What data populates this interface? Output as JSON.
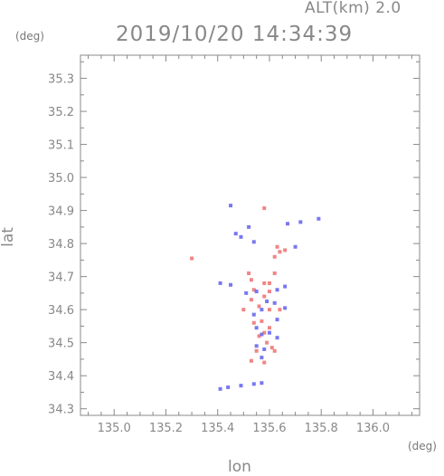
{
  "header": {
    "altitude_label": "ALT(km)  2.0",
    "timestamp": "2019/10/20 14:34:39"
  },
  "chart_data": {
    "type": "scatter",
    "title": "2019/10/20 14:34:39",
    "subtitle": "ALT(km)  2.0",
    "xlabel": "lon",
    "ylabel": "lat",
    "x_unit": "(deg)",
    "y_unit": "(deg)",
    "xlim": [
      134.87,
      136.18
    ],
    "ylim": [
      34.28,
      35.37
    ],
    "x_ticks": [
      "135.0",
      "135.2",
      "135.4",
      "135.6",
      "135.8",
      "136.0"
    ],
    "x_tick_values": [
      135.0,
      135.2,
      135.4,
      135.6,
      135.8,
      136.0
    ],
    "y_ticks": [
      "34.3",
      "34.4",
      "34.5",
      "34.6",
      "34.7",
      "34.8",
      "34.9",
      "35.0",
      "35.1",
      "35.2",
      "35.3"
    ],
    "y_tick_values": [
      34.3,
      34.4,
      34.5,
      34.6,
      34.7,
      34.8,
      34.9,
      35.0,
      35.1,
      35.2,
      35.3
    ],
    "colors": {
      "positive": "#f07070",
      "negative": "#6060f0",
      "axis": "#888888"
    },
    "series": [
      {
        "color": "#f07070",
        "points": [
          [
            135.3,
            34.755
          ],
          [
            135.58,
            34.907
          ],
          [
            135.63,
            34.79
          ],
          [
            135.64,
            34.775
          ],
          [
            135.62,
            34.76
          ],
          [
            135.66,
            34.78
          ],
          [
            135.52,
            34.71
          ],
          [
            135.53,
            34.69
          ],
          [
            135.58,
            34.68
          ],
          [
            135.6,
            34.68
          ],
          [
            135.6,
            34.655
          ],
          [
            135.58,
            34.64
          ],
          [
            135.53,
            34.63
          ],
          [
            135.56,
            34.61
          ],
          [
            135.6,
            34.6
          ],
          [
            135.64,
            34.6
          ],
          [
            135.54,
            34.56
          ],
          [
            135.57,
            34.565
          ],
          [
            135.6,
            34.545
          ],
          [
            135.58,
            34.53
          ],
          [
            135.56,
            34.52
          ],
          [
            135.59,
            34.5
          ],
          [
            135.61,
            34.485
          ],
          [
            135.55,
            34.475
          ],
          [
            135.62,
            34.475
          ],
          [
            135.53,
            34.445
          ],
          [
            135.58,
            34.44
          ],
          [
            135.54,
            34.66
          ],
          [
            135.62,
            34.71
          ],
          [
            135.5,
            34.6
          ]
        ]
      },
      {
        "color": "#6060f0",
        "points": [
          [
            135.45,
            34.915
          ],
          [
            135.52,
            34.85
          ],
          [
            135.47,
            34.83
          ],
          [
            135.49,
            34.82
          ],
          [
            135.67,
            34.86
          ],
          [
            135.72,
            34.865
          ],
          [
            135.79,
            34.875
          ],
          [
            135.54,
            34.805
          ],
          [
            135.7,
            34.79
          ],
          [
            135.41,
            34.68
          ],
          [
            135.45,
            34.675
          ],
          [
            135.51,
            34.65
          ],
          [
            135.55,
            34.655
          ],
          [
            135.63,
            34.66
          ],
          [
            135.66,
            34.67
          ],
          [
            135.59,
            34.625
          ],
          [
            135.62,
            34.62
          ],
          [
            135.57,
            34.6
          ],
          [
            135.66,
            34.605
          ],
          [
            135.54,
            34.585
          ],
          [
            135.63,
            34.57
          ],
          [
            135.55,
            34.545
          ],
          [
            135.57,
            34.525
          ],
          [
            135.6,
            34.53
          ],
          [
            135.63,
            34.515
          ],
          [
            135.55,
            34.49
          ],
          [
            135.58,
            34.48
          ],
          [
            135.57,
            34.455
          ],
          [
            135.41,
            34.36
          ],
          [
            135.44,
            34.365
          ],
          [
            135.49,
            34.37
          ],
          [
            135.54,
            34.375
          ],
          [
            135.57,
            34.378
          ]
        ]
      }
    ]
  }
}
